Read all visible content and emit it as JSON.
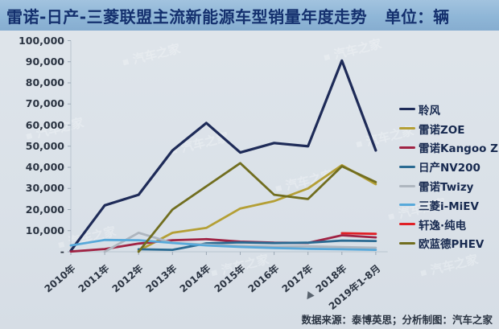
{
  "chart_data": {
    "type": "line",
    "title": "雷诺-日产-三菱联盟主流新能源车型销量年度走势",
    "unit_label": "单位：辆",
    "categories": [
      "2010年",
      "2011年",
      "2012年",
      "2013年",
      "2014年",
      "2015年",
      "2016年",
      "2017年",
      "2018年",
      "2019年1-8月"
    ],
    "y_ticks": {
      "values": [
        0,
        10000,
        20000,
        30000,
        40000,
        50000,
        60000,
        70000,
        80000,
        90000,
        100000
      ],
      "labels": [
        "-",
        "10,000",
        "20,000",
        "30,000",
        "40,000",
        "50,000",
        "60,000",
        "70,000",
        "80,000",
        "90,000",
        "100,000"
      ]
    },
    "ylim": [
      0,
      100000
    ],
    "grid": false,
    "legend_position": "right",
    "series": [
      {
        "name": "聆风",
        "color": "#1e2b58",
        "values": [
          500,
          22000,
          27000,
          48000,
          61000,
          47000,
          51500,
          50000,
          90500,
          48000
        ]
      },
      {
        "name": "雷诺ZOE",
        "color": "#b49f35",
        "values": [
          null,
          null,
          500,
          9000,
          11300,
          20500,
          24000,
          30000,
          41000,
          32000
        ]
      },
      {
        "name": "雷诺Kangoo ZE",
        "color": "#a02344",
        "values": [
          100,
          1300,
          3900,
          5500,
          6000,
          4800,
          4300,
          4200,
          7800,
          6800
        ]
      },
      {
        "name": "日产NV200",
        "color": "#2a6a92",
        "values": [
          null,
          null,
          1200,
          900,
          4000,
          4400,
          4100,
          4300,
          5300,
          5100
        ]
      },
      {
        "name": "雷诺Twizy",
        "color": "#aeb6bf",
        "values": [
          null,
          0,
          9000,
          4200,
          3400,
          2800,
          2400,
          2600,
          2200,
          1900
        ]
      },
      {
        "name": "三菱i-MiEV",
        "color": "#58a9da",
        "values": [
          3000,
          5600,
          5500,
          4200,
          3000,
          2300,
          1800,
          1400,
          1200,
          900
        ]
      },
      {
        "name": "轩逸·纯电",
        "color": "#e02026",
        "values": [
          null,
          null,
          null,
          null,
          null,
          null,
          null,
          null,
          8800,
          8500
        ]
      },
      {
        "name": "欧蓝德PHEV",
        "color": "#716e1f",
        "values": [
          null,
          null,
          0,
          20000,
          31000,
          42000,
          27000,
          25000,
          40500,
          33000
        ]
      }
    ],
    "source": "数据来源：泰博英思；分析制图：汽车之家",
    "watermark": "汽车之家",
    "colors": {
      "title_text": "#14306e",
      "title_bg": "#8fb6d7",
      "plot_bg": "#dae1e8",
      "axis": "#c3cdd7",
      "label_text": "#2b3442"
    }
  }
}
